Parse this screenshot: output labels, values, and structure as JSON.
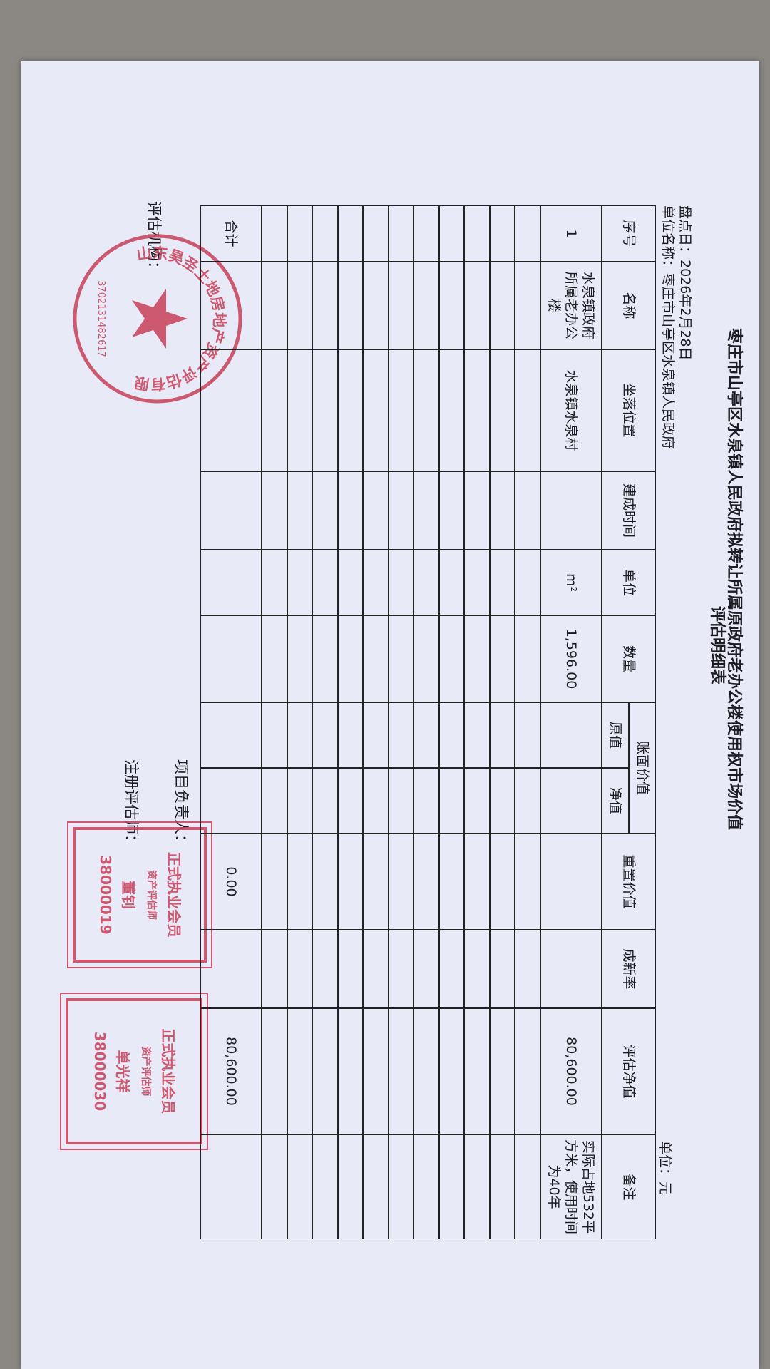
{
  "header": {
    "title": "枣庄市山亭区水泉镇人民政府拟转让所属原政府老办公楼使用权市场价值",
    "subtitle": "评估明细表",
    "date": "盘点日：2026年2月28日",
    "unit_name": "单位名称：枣庄市山亭区水泉镇人民政府",
    "currency": "单位：元"
  },
  "table": {
    "columns": [
      "序号",
      "名称",
      "坐落位置",
      "建成时间",
      "单位",
      "数量",
      "原值",
      "净值",
      "重置价值",
      "成新率",
      "评估净值",
      "备注"
    ],
    "column_group": "账面价值",
    "rows": [
      [
        "1",
        "水泉镇政府所属老办公楼",
        "水泉镇水泉村",
        null,
        "m²",
        "1,596.00",
        null,
        null,
        null,
        null,
        "80,600.00",
        "实际占地532平方米，使用时间为40年"
      ]
    ],
    "total": [
      "合计",
      null,
      null,
      null,
      null,
      null,
      null,
      null,
      "0.00",
      null,
      "80,600.00",
      null
    ]
  },
  "footer": {
    "project_lead": "项目负责人：",
    "agency": "评估机构：",
    "appraisers": "注册评估师："
  },
  "stamps": {
    "seal": {
      "name": "山东昊圣土地房地产资产评估有限公司",
      "code": "3702131482617"
    },
    "appraiser_1": {
      "member": "正式执业会员",
      "title": "资产评估师",
      "name": "董钊",
      "number": "38000019"
    },
    "appraiser_2": {
      "member": "正式执业会员",
      "title": "资产评估师",
      "name": "单光祥",
      "number": "38000030"
    }
  }
}
